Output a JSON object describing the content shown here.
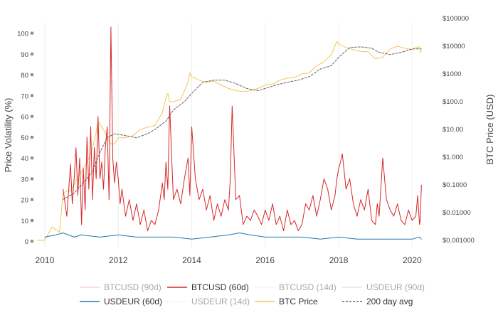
{
  "chart_data": {
    "type": "line",
    "title": "",
    "x_axis": {
      "label": "",
      "ticks": [
        "2010",
        "2012",
        "2014",
        "2016",
        "2018",
        "2020"
      ],
      "range": [
        2009.75,
        2020.4
      ]
    },
    "y_axis_left": {
      "label": "Price Volatility (%)",
      "ticks": [
        "0",
        "10",
        "20",
        "30",
        "40",
        "50",
        "60",
        "70",
        "80",
        "90",
        "100"
      ],
      "range": [
        -3,
        105
      ]
    },
    "y_axis_right": {
      "label": "BTC Price (USD)",
      "scale": "log",
      "ticks": [
        "$0.001000",
        "$0.01000",
        "$0.1000",
        "$1.000",
        "$10.00",
        "$100.0",
        "$1000",
        "$10000",
        "$100000"
      ],
      "range": [
        0.001,
        100000
      ]
    },
    "grid": "vertical",
    "legend_position": "bottom",
    "series": [
      {
        "name": "BTCUSD (90d)",
        "axis": "left",
        "visible": false,
        "color": "#e8a0a0"
      },
      {
        "name": "BTCUSD (60d)",
        "axis": "left",
        "visible": true,
        "color": "#d62728",
        "x": [
          2010.5,
          2010.6,
          2010.7,
          2010.75,
          2010.8,
          2010.85,
          2010.9,
          2010.95,
          2011.0,
          2011.05,
          2011.1,
          2011.15,
          2011.2,
          2011.25,
          2011.3,
          2011.35,
          2011.4,
          2011.45,
          2011.5,
          2011.55,
          2011.6,
          2011.65,
          2011.7,
          2011.75,
          2011.8,
          2011.85,
          2011.9,
          2011.95,
          2012.0,
          2012.05,
          2012.1,
          2012.2,
          2012.3,
          2012.4,
          2012.5,
          2012.6,
          2012.7,
          2012.8,
          2012.9,
          2013.0,
          2013.1,
          2013.2,
          2013.25,
          2013.3,
          2013.35,
          2013.4,
          2013.5,
          2013.6,
          2013.7,
          2013.8,
          2013.9,
          2013.95,
          2014.0,
          2014.1,
          2014.2,
          2014.3,
          2014.4,
          2014.5,
          2014.6,
          2014.7,
          2014.8,
          2014.9,
          2015.0,
          2015.05,
          2015.1,
          2015.2,
          2015.3,
          2015.4,
          2015.5,
          2015.6,
          2015.7,
          2015.8,
          2015.9,
          2016.0,
          2016.1,
          2016.2,
          2016.3,
          2016.4,
          2016.5,
          2016.6,
          2016.7,
          2016.8,
          2016.9,
          2017.0,
          2017.1,
          2017.2,
          2017.3,
          2017.4,
          2017.5,
          2017.6,
          2017.7,
          2017.8,
          2017.9,
          2017.95,
          2018.0,
          2018.05,
          2018.1,
          2018.2,
          2018.3,
          2018.4,
          2018.5,
          2018.6,
          2018.7,
          2018.8,
          2018.9,
          2019.0,
          2019.05,
          2019.1,
          2019.2,
          2019.3,
          2019.4,
          2019.5,
          2019.6,
          2019.7,
          2019.8,
          2019.9,
          2020.0,
          2020.1,
          2020.15,
          2020.2,
          2020.22,
          2020.25
        ],
        "y": [
          25,
          12,
          37,
          18,
          30,
          45,
          22,
          40,
          8,
          35,
          15,
          50,
          25,
          55,
          20,
          45,
          30,
          60,
          30,
          38,
          25,
          45,
          55,
          20,
          103,
          40,
          28,
          38,
          30,
          18,
          25,
          12,
          20,
          10,
          18,
          8,
          15,
          5,
          10,
          8,
          15,
          28,
          20,
          38,
          25,
          65,
          20,
          25,
          18,
          30,
          40,
          22,
          55,
          30,
          20,
          25,
          15,
          22,
          10,
          18,
          12,
          20,
          15,
          30,
          65,
          20,
          22,
          8,
          12,
          10,
          15,
          12,
          8,
          15,
          10,
          18,
          8,
          12,
          5,
          15,
          8,
          10,
          5,
          8,
          18,
          15,
          22,
          12,
          20,
          30,
          25,
          15,
          22,
          30,
          35,
          38,
          42,
          25,
          30,
          18,
          12,
          20,
          15,
          25,
          10,
          8,
          18,
          12,
          40,
          20,
          15,
          12,
          18,
          10,
          8,
          15,
          10,
          12,
          22,
          8,
          10,
          27
        ]
      },
      {
        "name": "BTCUSD (14d)",
        "axis": "left",
        "visible": false,
        "color": "#e8e8e8"
      },
      {
        "name": "USDEUR (90d)",
        "axis": "left",
        "visible": false,
        "color": "#a6c8f0"
      },
      {
        "name": "USDEUR (60d)",
        "axis": "left",
        "visible": true,
        "color": "#1f77b4",
        "x": [
          2010.0,
          2010.3,
          2010.5,
          2010.8,
          2011.0,
          2011.5,
          2012.0,
          2012.5,
          2013.0,
          2013.5,
          2014.0,
          2014.5,
          2015.0,
          2015.3,
          2015.6,
          2016.0,
          2016.5,
          2017.0,
          2017.5,
          2018.0,
          2018.5,
          2019.0,
          2019.5,
          2020.0,
          2020.2,
          2020.25
        ],
        "y": [
          2,
          3,
          4,
          2,
          3,
          2,
          3,
          2,
          2,
          2,
          1,
          2,
          3,
          4,
          3,
          2,
          2,
          2,
          1,
          2,
          1,
          1,
          1,
          1,
          2,
          1
        ]
      },
      {
        "name": "USDEUR (14d)",
        "axis": "left",
        "visible": false,
        "color": "#a6c8f0"
      },
      {
        "name": "BTC Price",
        "axis": "right",
        "visible": true,
        "color": "#f5c453",
        "x": [
          2009.8,
          2010.0,
          2010.2,
          2010.4,
          2010.5,
          2010.6,
          2010.7,
          2010.8,
          2010.9,
          2011.0,
          2011.1,
          2011.2,
          2011.3,
          2011.4,
          2011.45,
          2011.5,
          2011.6,
          2011.7,
          2011.8,
          2011.9,
          2012.0,
          2012.2,
          2012.4,
          2012.6,
          2012.8,
          2013.0,
          2013.2,
          2013.3,
          2013.35,
          2013.4,
          2013.5,
          2013.7,
          2013.9,
          2013.95,
          2014.0,
          2014.2,
          2014.4,
          2014.6,
          2014.8,
          2015.0,
          2015.2,
          2015.4,
          2015.6,
          2015.8,
          2016.0,
          2016.2,
          2016.4,
          2016.6,
          2016.8,
          2017.0,
          2017.2,
          2017.4,
          2017.6,
          2017.8,
          2017.95,
          2018.0,
          2018.2,
          2018.4,
          2018.6,
          2018.8,
          2019.0,
          2019.2,
          2019.4,
          2019.6,
          2019.8,
          2020.0,
          2020.1,
          2020.2,
          2020.22,
          2020.25
        ],
        "y": [
          0.001,
          0.001,
          0.003,
          0.002,
          0.05,
          0.06,
          0.06,
          0.1,
          0.2,
          0.3,
          0.5,
          0.9,
          2,
          8,
          20,
          15,
          10,
          5,
          3,
          3,
          5,
          5,
          6,
          10,
          12,
          14,
          40,
          140,
          200,
          100,
          100,
          120,
          500,
          1100,
          800,
          600,
          500,
          550,
          400,
          300,
          250,
          230,
          250,
          300,
          400,
          430,
          600,
          700,
          750,
          1000,
          1100,
          2000,
          2700,
          5000,
          15000,
          12000,
          9000,
          7500,
          6500,
          6300,
          3500,
          4000,
          8000,
          10000,
          8500,
          7500,
          9000,
          9500,
          6000,
          6800
        ]
      },
      {
        "name": "200 day avg",
        "axis": "right",
        "visible": true,
        "color": "#666666",
        "x": [
          2010.5,
          2010.8,
          2011.0,
          2011.3,
          2011.5,
          2011.7,
          2011.9,
          2012.2,
          2012.5,
          2012.8,
          2013.0,
          2013.3,
          2013.5,
          2013.8,
          2014.0,
          2014.3,
          2014.6,
          2014.9,
          2015.2,
          2015.5,
          2015.8,
          2016.0,
          2016.3,
          2016.6,
          2016.9,
          2017.2,
          2017.5,
          2017.8,
          2018.0,
          2018.3,
          2018.6,
          2018.9,
          2019.1,
          2019.4,
          2019.7,
          2020.0,
          2020.25
        ],
        "y": [
          0.03,
          0.05,
          0.1,
          0.3,
          1.5,
          5,
          7,
          6,
          5,
          7,
          10,
          20,
          50,
          100,
          200,
          500,
          600,
          600,
          450,
          300,
          250,
          300,
          400,
          500,
          600,
          800,
          1500,
          2000,
          4000,
          9000,
          9500,
          8500,
          6000,
          5000,
          6000,
          8000,
          8000
        ]
      }
    ]
  }
}
